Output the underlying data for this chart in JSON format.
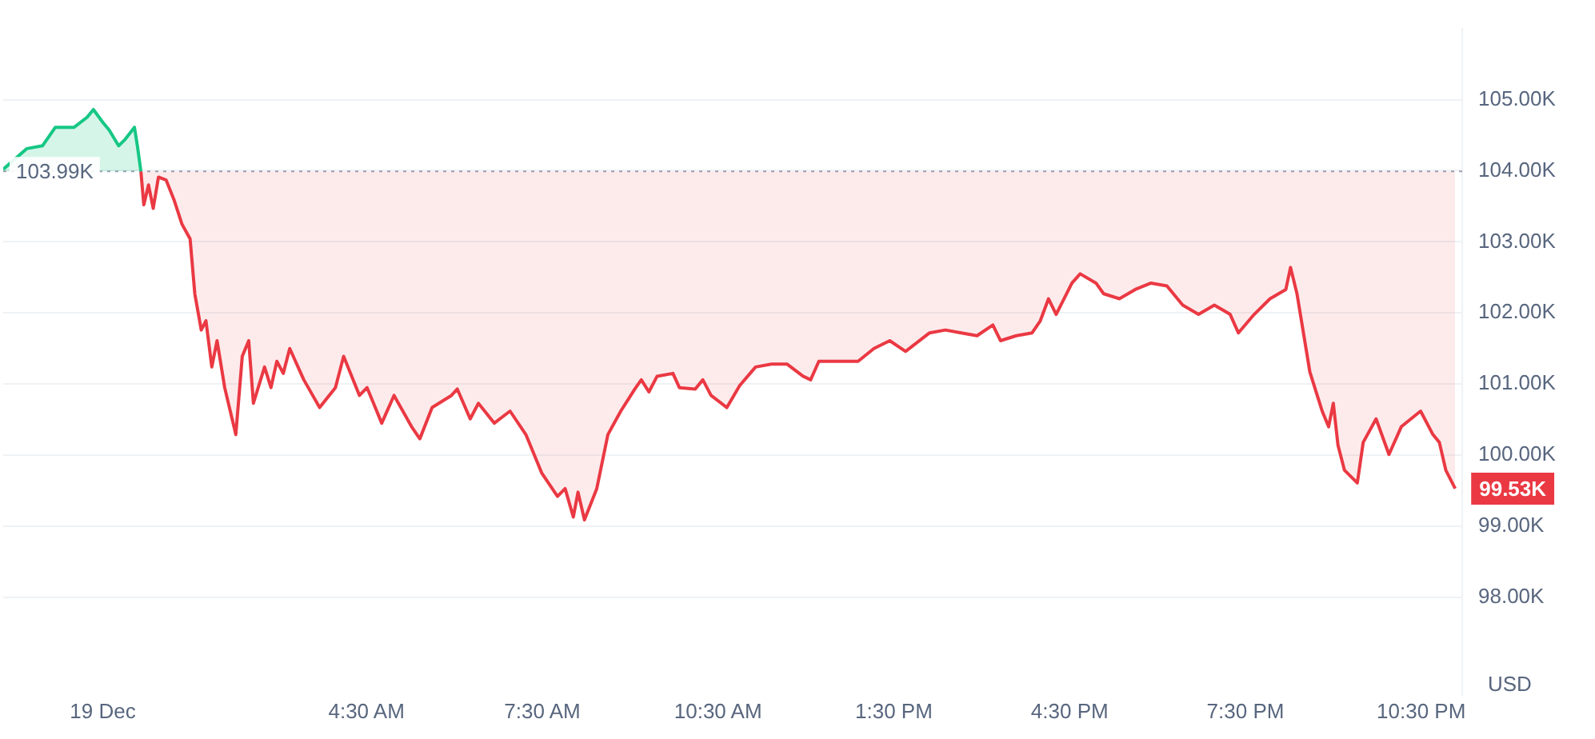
{
  "chart_data": {
    "type": "line",
    "ylabel": "USD",
    "xlim": [
      -1.7,
      23.2
    ],
    "ylim": [
      96.63,
      106.0
    ],
    "xticks": [
      {
        "value": 0,
        "label": "19 Dec"
      },
      {
        "value": 4.5,
        "label": "4:30 AM"
      },
      {
        "value": 7.5,
        "label": "7:30 AM"
      },
      {
        "value": 10.5,
        "label": "10:30 AM"
      },
      {
        "value": 13.5,
        "label": "1:30 PM"
      },
      {
        "value": 16.5,
        "label": "4:30 PM"
      },
      {
        "value": 19.5,
        "label": "7:30 PM"
      },
      {
        "value": 22.5,
        "label": "10:30 PM"
      }
    ],
    "yticks": [
      {
        "value": 98,
        "label": "98.00K"
      },
      {
        "value": 99,
        "label": "99.00K"
      },
      {
        "value": 100,
        "label": "100.00K"
      },
      {
        "value": 101,
        "label": "101.00K"
      },
      {
        "value": 102,
        "label": "102.00K"
      },
      {
        "value": 103,
        "label": "103.00K"
      },
      {
        "value": 104,
        "label": "104.00K"
      },
      {
        "value": 105,
        "label": "105.00K"
      }
    ],
    "grid": "y",
    "legend": false,
    "marker": "none",
    "line_style": "solid",
    "ref_lines": [
      {
        "axis": "y",
        "value": 103.99,
        "label": "103.99K",
        "color": "#9aa3b2",
        "line_style": "dotted"
      }
    ],
    "annotations": [
      {
        "text": "99.53K",
        "x": 23.08,
        "y": 99.53
      }
    ],
    "series": [
      {
        "color": "#16c784",
        "x": [
          -1.7,
          -1.3,
          -1.03,
          -0.81,
          -0.49,
          -0.27,
          -0.16,
          0,
          0.11,
          0.27,
          0.38,
          0.54,
          0.59,
          0.65
        ],
        "values": [
          104.02,
          104.31,
          104.35,
          104.61,
          104.61,
          104.75,
          104.86,
          104.68,
          104.57,
          104.35,
          104.44,
          104.61,
          104.35,
          103.99
        ]
      },
      {
        "color": "#ea3943",
        "x": [
          0.65,
          0.7,
          0.78,
          0.86,
          0.95,
          1.08,
          1.22,
          1.35,
          1.49,
          1.57,
          1.68,
          1.76,
          1.86,
          1.95,
          2.08,
          2.27,
          2.38,
          2.49,
          2.57,
          2.76,
          2.87,
          2.97,
          3.08,
          3.19,
          3.43,
          3.7,
          3.97,
          4.11,
          4.38,
          4.51,
          4.76,
          4.97,
          5.27,
          5.41,
          5.62,
          5.95,
          6.05,
          6.27,
          6.41,
          6.68,
          6.95,
          7.22,
          7.49,
          7.76,
          7.89,
          8.03,
          8.11,
          8.22,
          8.43,
          8.62,
          8.84,
          9.08,
          9.19,
          9.32,
          9.46,
          9.73,
          9.84,
          10.11,
          10.24,
          10.38,
          10.65,
          10.87,
          11.14,
          11.41,
          11.68,
          11.95,
          12.08,
          12.22,
          12.49,
          12.89,
          13.16,
          13.43,
          13.7,
          14.11,
          14.38,
          14.65,
          14.92,
          15.19,
          15.32,
          15.59,
          15.86,
          16.0,
          16.14,
          16.27,
          16.54,
          16.68,
          16.95,
          17.08,
          17.35,
          17.62,
          17.89,
          18.16,
          18.43,
          18.7,
          18.97,
          19.24,
          19.38,
          19.65,
          19.92,
          20.19,
          20.27,
          20.38,
          20.49,
          20.6,
          20.81,
          20.92,
          21.0,
          21.08,
          21.19,
          21.41,
          21.51,
          21.73,
          21.95,
          22.16,
          22.49,
          22.7,
          22.81,
          22.92,
          23.08
        ],
        "values": [
          103.99,
          103.52,
          103.8,
          103.47,
          103.91,
          103.87,
          103.58,
          103.25,
          103.04,
          102.27,
          101.76,
          101.89,
          101.24,
          101.61,
          100.95,
          100.29,
          101.39,
          101.61,
          100.73,
          101.24,
          100.95,
          101.32,
          101.15,
          101.5,
          101.06,
          100.67,
          100.95,
          101.39,
          100.84,
          100.95,
          100.45,
          100.84,
          100.4,
          100.23,
          100.67,
          100.84,
          100.93,
          100.51,
          100.73,
          100.45,
          100.62,
          100.29,
          99.75,
          99.42,
          99.53,
          99.13,
          99.48,
          99.09,
          99.53,
          100.29,
          100.62,
          100.93,
          101.06,
          100.89,
          101.11,
          101.15,
          100.95,
          100.93,
          101.06,
          100.84,
          100.67,
          100.98,
          101.24,
          101.28,
          101.28,
          101.11,
          101.06,
          101.32,
          101.32,
          101.32,
          101.5,
          101.61,
          101.46,
          101.72,
          101.76,
          101.72,
          101.68,
          101.83,
          101.61,
          101.68,
          101.72,
          101.89,
          102.2,
          101.98,
          102.42,
          102.55,
          102.42,
          102.27,
          102.2,
          102.33,
          102.42,
          102.38,
          102.11,
          101.98,
          102.11,
          101.98,
          101.72,
          101.98,
          102.2,
          102.33,
          102.64,
          102.27,
          101.72,
          101.17,
          100.62,
          100.4,
          100.73,
          100.14,
          99.79,
          99.61,
          100.18,
          100.51,
          100.01,
          100.4,
          100.62,
          100.29,
          100.18,
          99.79,
          99.53
        ]
      }
    ]
  }
}
